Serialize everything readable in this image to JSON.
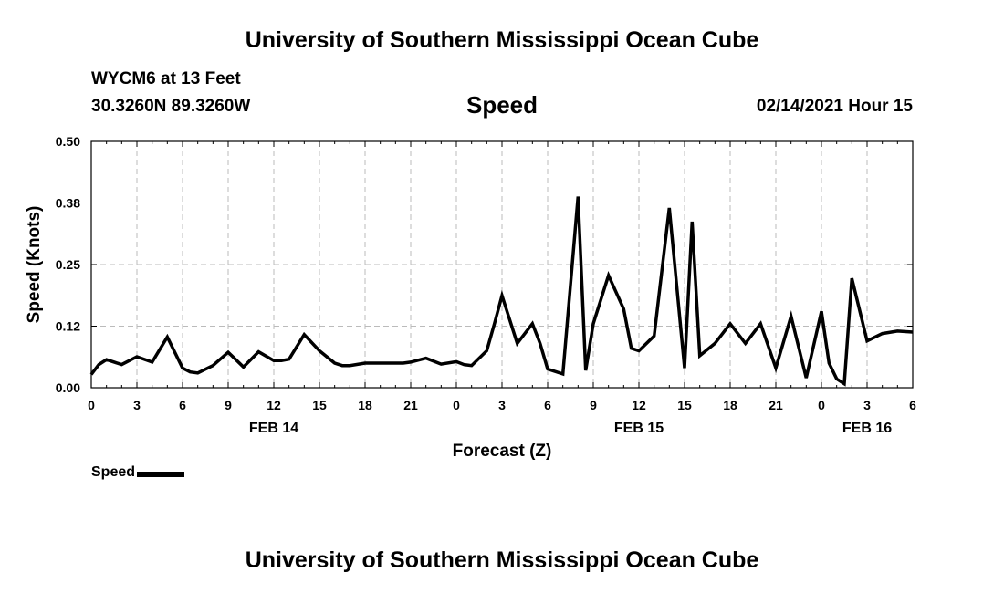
{
  "header": {
    "title": "University of Southern Mississippi Ocean Cube",
    "station": "WYCM6 at 13 Feet",
    "coords": "30.3260N 89.3260W",
    "parameter": "Speed",
    "datetime": "02/14/2021 Hour 15"
  },
  "footer": {
    "title": "University of Southern Mississippi Ocean Cube"
  },
  "chart_data": {
    "type": "line",
    "ylabel": "Speed (Knots)",
    "xlabel": "Forecast (Z)",
    "ylim": [
      0,
      0.5
    ],
    "xlim_hours": [
      0,
      54
    ],
    "y_ticks": [
      "0.00",
      "0.12",
      "0.25",
      "0.38",
      "0.50"
    ],
    "y_tick_values": [
      0,
      0.125,
      0.25,
      0.375,
      0.5
    ],
    "x_ticks": [
      "0",
      "3",
      "6",
      "9",
      "12",
      "15",
      "18",
      "21",
      "0",
      "3",
      "6",
      "9",
      "12",
      "15",
      "18",
      "21",
      "0",
      "3",
      "6"
    ],
    "x_tick_hours": [
      0,
      3,
      6,
      9,
      12,
      15,
      18,
      21,
      24,
      27,
      30,
      33,
      36,
      39,
      42,
      45,
      48,
      51,
      54
    ],
    "date_labels": [
      {
        "label": "FEB 14",
        "hour": 12
      },
      {
        "label": "FEB 15",
        "hour": 36
      },
      {
        "label": "FEB 16",
        "hour": 51
      }
    ],
    "grid": true,
    "legend": "bottom-left",
    "series": [
      {
        "name": "Speed",
        "color": "#000000",
        "x": [
          0,
          0.5,
          1,
          2,
          3,
          4,
          5,
          6,
          6.5,
          7,
          8,
          9,
          10,
          11,
          12,
          12.5,
          13,
          14,
          15,
          16,
          16.5,
          17,
          18,
          19,
          20,
          20.5,
          21,
          22,
          23,
          24,
          24.5,
          25,
          26,
          26.5,
          27,
          28,
          29,
          29.5,
          30,
          31,
          32,
          32.5,
          33,
          34,
          35,
          35.5,
          36,
          37,
          38,
          39,
          39.5,
          40,
          41,
          42,
          43,
          44,
          45,
          46,
          47,
          48,
          48.5,
          49,
          49.5,
          50,
          51,
          52,
          53,
          54
        ],
        "y": [
          0.027,
          0.047,
          0.057,
          0.047,
          0.063,
          0.052,
          0.103,
          0.04,
          0.032,
          0.03,
          0.045,
          0.072,
          0.042,
          0.073,
          0.055,
          0.055,
          0.058,
          0.108,
          0.075,
          0.05,
          0.045,
          0.045,
          0.05,
          0.05,
          0.05,
          0.05,
          0.052,
          0.06,
          0.048,
          0.053,
          0.047,
          0.045,
          0.075,
          0.13,
          0.187,
          0.09,
          0.13,
          0.09,
          0.038,
          0.028,
          0.388,
          0.035,
          0.13,
          0.228,
          0.16,
          0.08,
          0.075,
          0.105,
          0.365,
          0.04,
          0.337,
          0.065,
          0.09,
          0.13,
          0.09,
          0.13,
          0.04,
          0.145,
          0.02,
          0.155,
          0.05,
          0.018,
          0.008,
          0.222,
          0.095,
          0.11,
          0.115,
          0.113
        ]
      }
    ]
  }
}
